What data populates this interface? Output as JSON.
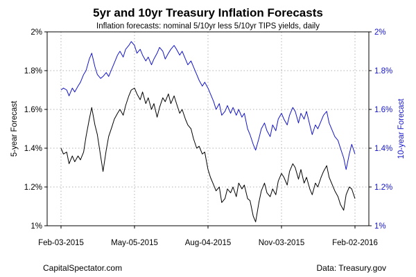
{
  "chart_data": {
    "type": "line",
    "title": "5yr and 10yr Treasury Inflation Forecasts",
    "subtitle": "Inflation forecasts: nominal 5/10yr less 5/10yr TIPS yields, daily",
    "ylabel": "5-year Forecast",
    "ylabel_right": "10-year Forecast",
    "ylim": [
      1.0,
      2.0
    ],
    "yticks": [
      1.0,
      1.2,
      1.4,
      1.6,
      1.8,
      2.0
    ],
    "ytick_labels": [
      "1%",
      "1.2%",
      "1.4%",
      "1.6%",
      "1.8%",
      "2%"
    ],
    "x_range": [
      "2015-02-03",
      "2016-02-02"
    ],
    "xticks": [
      "2015-02-03",
      "2015-05-05",
      "2015-08-04",
      "2015-11-03",
      "2016-02-02"
    ],
    "xtick_labels": [
      "Feb-03-2015",
      "May-05-2015",
      "Aug-04-2015",
      "Nov-03-2015",
      "Feb-02-2016"
    ],
    "grid": true,
    "series": [
      {
        "name": "5-year Forecast",
        "axis": "left",
        "color": "#000000",
        "points": [
          [
            "2015-02-03",
            1.4
          ],
          [
            "2015-02-06",
            1.37
          ],
          [
            "2015-02-10",
            1.38
          ],
          [
            "2015-02-13",
            1.32
          ],
          [
            "2015-02-17",
            1.36
          ],
          [
            "2015-02-20",
            1.33
          ],
          [
            "2015-02-24",
            1.36
          ],
          [
            "2015-02-27",
            1.34
          ],
          [
            "2015-03-03",
            1.38
          ],
          [
            "2015-03-06",
            1.46
          ],
          [
            "2015-03-10",
            1.55
          ],
          [
            "2015-03-13",
            1.61
          ],
          [
            "2015-03-17",
            1.52
          ],
          [
            "2015-03-20",
            1.47
          ],
          [
            "2015-03-24",
            1.36
          ],
          [
            "2015-03-27",
            1.28
          ],
          [
            "2015-03-31",
            1.39
          ],
          [
            "2015-04-03",
            1.46
          ],
          [
            "2015-04-07",
            1.51
          ],
          [
            "2015-04-10",
            1.55
          ],
          [
            "2015-04-14",
            1.58
          ],
          [
            "2015-04-17",
            1.6
          ],
          [
            "2015-04-21",
            1.57
          ],
          [
            "2015-04-24",
            1.62
          ],
          [
            "2015-04-28",
            1.67
          ],
          [
            "2015-05-01",
            1.7
          ],
          [
            "2015-05-05",
            1.71
          ],
          [
            "2015-05-08",
            1.68
          ],
          [
            "2015-05-12",
            1.65
          ],
          [
            "2015-05-15",
            1.69
          ],
          [
            "2015-05-19",
            1.63
          ],
          [
            "2015-05-22",
            1.66
          ],
          [
            "2015-05-26",
            1.6
          ],
          [
            "2015-05-29",
            1.63
          ],
          [
            "2015-06-02",
            1.56
          ],
          [
            "2015-06-05",
            1.61
          ],
          [
            "2015-06-09",
            1.66
          ],
          [
            "2015-06-12",
            1.64
          ],
          [
            "2015-06-16",
            1.68
          ],
          [
            "2015-06-19",
            1.63
          ],
          [
            "2015-06-23",
            1.67
          ],
          [
            "2015-06-26",
            1.63
          ],
          [
            "2015-06-30",
            1.58
          ],
          [
            "2015-07-03",
            1.6
          ],
          [
            "2015-07-07",
            1.55
          ],
          [
            "2015-07-10",
            1.52
          ],
          [
            "2015-07-14",
            1.5
          ],
          [
            "2015-07-17",
            1.45
          ],
          [
            "2015-07-21",
            1.4
          ],
          [
            "2015-07-24",
            1.41
          ],
          [
            "2015-07-28",
            1.37
          ],
          [
            "2015-07-31",
            1.38
          ],
          [
            "2015-08-04",
            1.29
          ],
          [
            "2015-08-07",
            1.25
          ],
          [
            "2015-08-11",
            1.21
          ],
          [
            "2015-08-14",
            1.18
          ],
          [
            "2015-08-18",
            1.2
          ],
          [
            "2015-08-21",
            1.12
          ],
          [
            "2015-08-25",
            1.14
          ],
          [
            "2015-08-28",
            1.19
          ],
          [
            "2015-09-01",
            1.17
          ],
          [
            "2015-09-04",
            1.2
          ],
          [
            "2015-09-08",
            1.15
          ],
          [
            "2015-09-11",
            1.22
          ],
          [
            "2015-09-15",
            1.19
          ],
          [
            "2015-09-18",
            1.21
          ],
          [
            "2015-09-22",
            1.14
          ],
          [
            "2015-09-25",
            1.13
          ],
          [
            "2015-09-29",
            1.05
          ],
          [
            "2015-10-02",
            1.02
          ],
          [
            "2015-10-06",
            1.12
          ],
          [
            "2015-10-09",
            1.18
          ],
          [
            "2015-10-13",
            1.22
          ],
          [
            "2015-10-16",
            1.17
          ],
          [
            "2015-10-20",
            1.15
          ],
          [
            "2015-10-23",
            1.19
          ],
          [
            "2015-10-27",
            1.16
          ],
          [
            "2015-10-30",
            1.23
          ],
          [
            "2015-11-03",
            1.27
          ],
          [
            "2015-11-06",
            1.25
          ],
          [
            "2015-11-10",
            1.21
          ],
          [
            "2015-11-13",
            1.28
          ],
          [
            "2015-11-17",
            1.32
          ],
          [
            "2015-11-20",
            1.3
          ],
          [
            "2015-11-24",
            1.24
          ],
          [
            "2015-11-27",
            1.29
          ],
          [
            "2015-12-01",
            1.22
          ],
          [
            "2015-12-04",
            1.25
          ],
          [
            "2015-12-08",
            1.19
          ],
          [
            "2015-12-11",
            1.16
          ],
          [
            "2015-12-15",
            1.22
          ],
          [
            "2015-12-18",
            1.2
          ],
          [
            "2015-12-22",
            1.25
          ],
          [
            "2015-12-25",
            1.28
          ],
          [
            "2015-12-29",
            1.31
          ],
          [
            "2016-01-01",
            1.25
          ],
          [
            "2016-01-05",
            1.21
          ],
          [
            "2016-01-08",
            1.18
          ],
          [
            "2016-01-12",
            1.15
          ],
          [
            "2016-01-15",
            1.11
          ],
          [
            "2016-01-19",
            1.08
          ],
          [
            "2016-01-22",
            1.16
          ],
          [
            "2016-01-26",
            1.2
          ],
          [
            "2016-01-29",
            1.19
          ],
          [
            "2016-02-02",
            1.14
          ]
        ]
      },
      {
        "name": "10-year Forecast",
        "axis": "right",
        "color": "#1515c8",
        "points": [
          [
            "2015-02-03",
            1.7
          ],
          [
            "2015-02-06",
            1.71
          ],
          [
            "2015-02-10",
            1.7
          ],
          [
            "2015-02-13",
            1.67
          ],
          [
            "2015-02-17",
            1.71
          ],
          [
            "2015-02-20",
            1.69
          ],
          [
            "2015-02-24",
            1.72
          ],
          [
            "2015-02-27",
            1.74
          ],
          [
            "2015-03-03",
            1.78
          ],
          [
            "2015-03-06",
            1.8
          ],
          [
            "2015-03-10",
            1.86
          ],
          [
            "2015-03-13",
            1.89
          ],
          [
            "2015-03-17",
            1.82
          ],
          [
            "2015-03-20",
            1.78
          ],
          [
            "2015-03-24",
            1.76
          ],
          [
            "2015-03-27",
            1.77
          ],
          [
            "2015-03-31",
            1.79
          ],
          [
            "2015-04-03",
            1.77
          ],
          [
            "2015-04-07",
            1.81
          ],
          [
            "2015-04-10",
            1.84
          ],
          [
            "2015-04-14",
            1.88
          ],
          [
            "2015-04-17",
            1.9
          ],
          [
            "2015-04-21",
            1.87
          ],
          [
            "2015-04-24",
            1.91
          ],
          [
            "2015-04-28",
            1.93
          ],
          [
            "2015-05-01",
            1.95
          ],
          [
            "2015-05-05",
            1.93
          ],
          [
            "2015-05-08",
            1.89
          ],
          [
            "2015-05-12",
            1.91
          ],
          [
            "2015-05-15",
            1.88
          ],
          [
            "2015-05-19",
            1.85
          ],
          [
            "2015-05-22",
            1.87
          ],
          [
            "2015-05-26",
            1.83
          ],
          [
            "2015-05-29",
            1.86
          ],
          [
            "2015-06-02",
            1.89
          ],
          [
            "2015-06-05",
            1.92
          ],
          [
            "2015-06-09",
            1.9
          ],
          [
            "2015-06-12",
            1.86
          ],
          [
            "2015-06-16",
            1.89
          ],
          [
            "2015-06-19",
            1.91
          ],
          [
            "2015-06-23",
            1.93
          ],
          [
            "2015-06-26",
            1.91
          ],
          [
            "2015-06-30",
            1.88
          ],
          [
            "2015-07-03",
            1.9
          ],
          [
            "2015-07-07",
            1.86
          ],
          [
            "2015-07-10",
            1.83
          ],
          [
            "2015-07-14",
            1.85
          ],
          [
            "2015-07-17",
            1.82
          ],
          [
            "2015-07-21",
            1.78
          ],
          [
            "2015-07-24",
            1.75
          ],
          [
            "2015-07-28",
            1.72
          ],
          [
            "2015-07-31",
            1.74
          ],
          [
            "2015-08-04",
            1.71
          ],
          [
            "2015-08-07",
            1.68
          ],
          [
            "2015-08-11",
            1.64
          ],
          [
            "2015-08-14",
            1.6
          ],
          [
            "2015-08-18",
            1.63
          ],
          [
            "2015-08-21",
            1.57
          ],
          [
            "2015-08-25",
            1.59
          ],
          [
            "2015-08-28",
            1.62
          ],
          [
            "2015-09-01",
            1.58
          ],
          [
            "2015-09-04",
            1.61
          ],
          [
            "2015-09-08",
            1.57
          ],
          [
            "2015-09-11",
            1.6
          ],
          [
            "2015-09-15",
            1.56
          ],
          [
            "2015-09-18",
            1.58
          ],
          [
            "2015-09-22",
            1.5
          ],
          [
            "2015-09-25",
            1.47
          ],
          [
            "2015-09-29",
            1.42
          ],
          [
            "2015-10-02",
            1.39
          ],
          [
            "2015-10-06",
            1.45
          ],
          [
            "2015-10-09",
            1.5
          ],
          [
            "2015-10-13",
            1.53
          ],
          [
            "2015-10-16",
            1.49
          ],
          [
            "2015-10-20",
            1.46
          ],
          [
            "2015-10-23",
            1.52
          ],
          [
            "2015-10-27",
            1.49
          ],
          [
            "2015-10-30",
            1.55
          ],
          [
            "2015-11-03",
            1.58
          ],
          [
            "2015-11-06",
            1.55
          ],
          [
            "2015-11-10",
            1.52
          ],
          [
            "2015-11-13",
            1.57
          ],
          [
            "2015-11-17",
            1.61
          ],
          [
            "2015-11-20",
            1.59
          ],
          [
            "2015-11-24",
            1.53
          ],
          [
            "2015-11-27",
            1.58
          ],
          [
            "2015-12-01",
            1.55
          ],
          [
            "2015-12-04",
            1.59
          ],
          [
            "2015-12-08",
            1.52
          ],
          [
            "2015-12-11",
            1.47
          ],
          [
            "2015-12-15",
            1.52
          ],
          [
            "2015-12-18",
            1.5
          ],
          [
            "2015-12-22",
            1.54
          ],
          [
            "2015-12-25",
            1.57
          ],
          [
            "2015-12-29",
            1.59
          ],
          [
            "2016-01-01",
            1.53
          ],
          [
            "2016-01-05",
            1.49
          ],
          [
            "2016-01-08",
            1.46
          ],
          [
            "2016-01-12",
            1.44
          ],
          [
            "2016-01-15",
            1.4
          ],
          [
            "2016-01-19",
            1.35
          ],
          [
            "2016-01-22",
            1.29
          ],
          [
            "2016-01-26",
            1.37
          ],
          [
            "2016-01-29",
            1.42
          ],
          [
            "2016-02-02",
            1.37
          ]
        ]
      }
    ]
  },
  "footer": {
    "left": "CapitalSpectator.com",
    "right": "Data: Treasury.gov"
  }
}
